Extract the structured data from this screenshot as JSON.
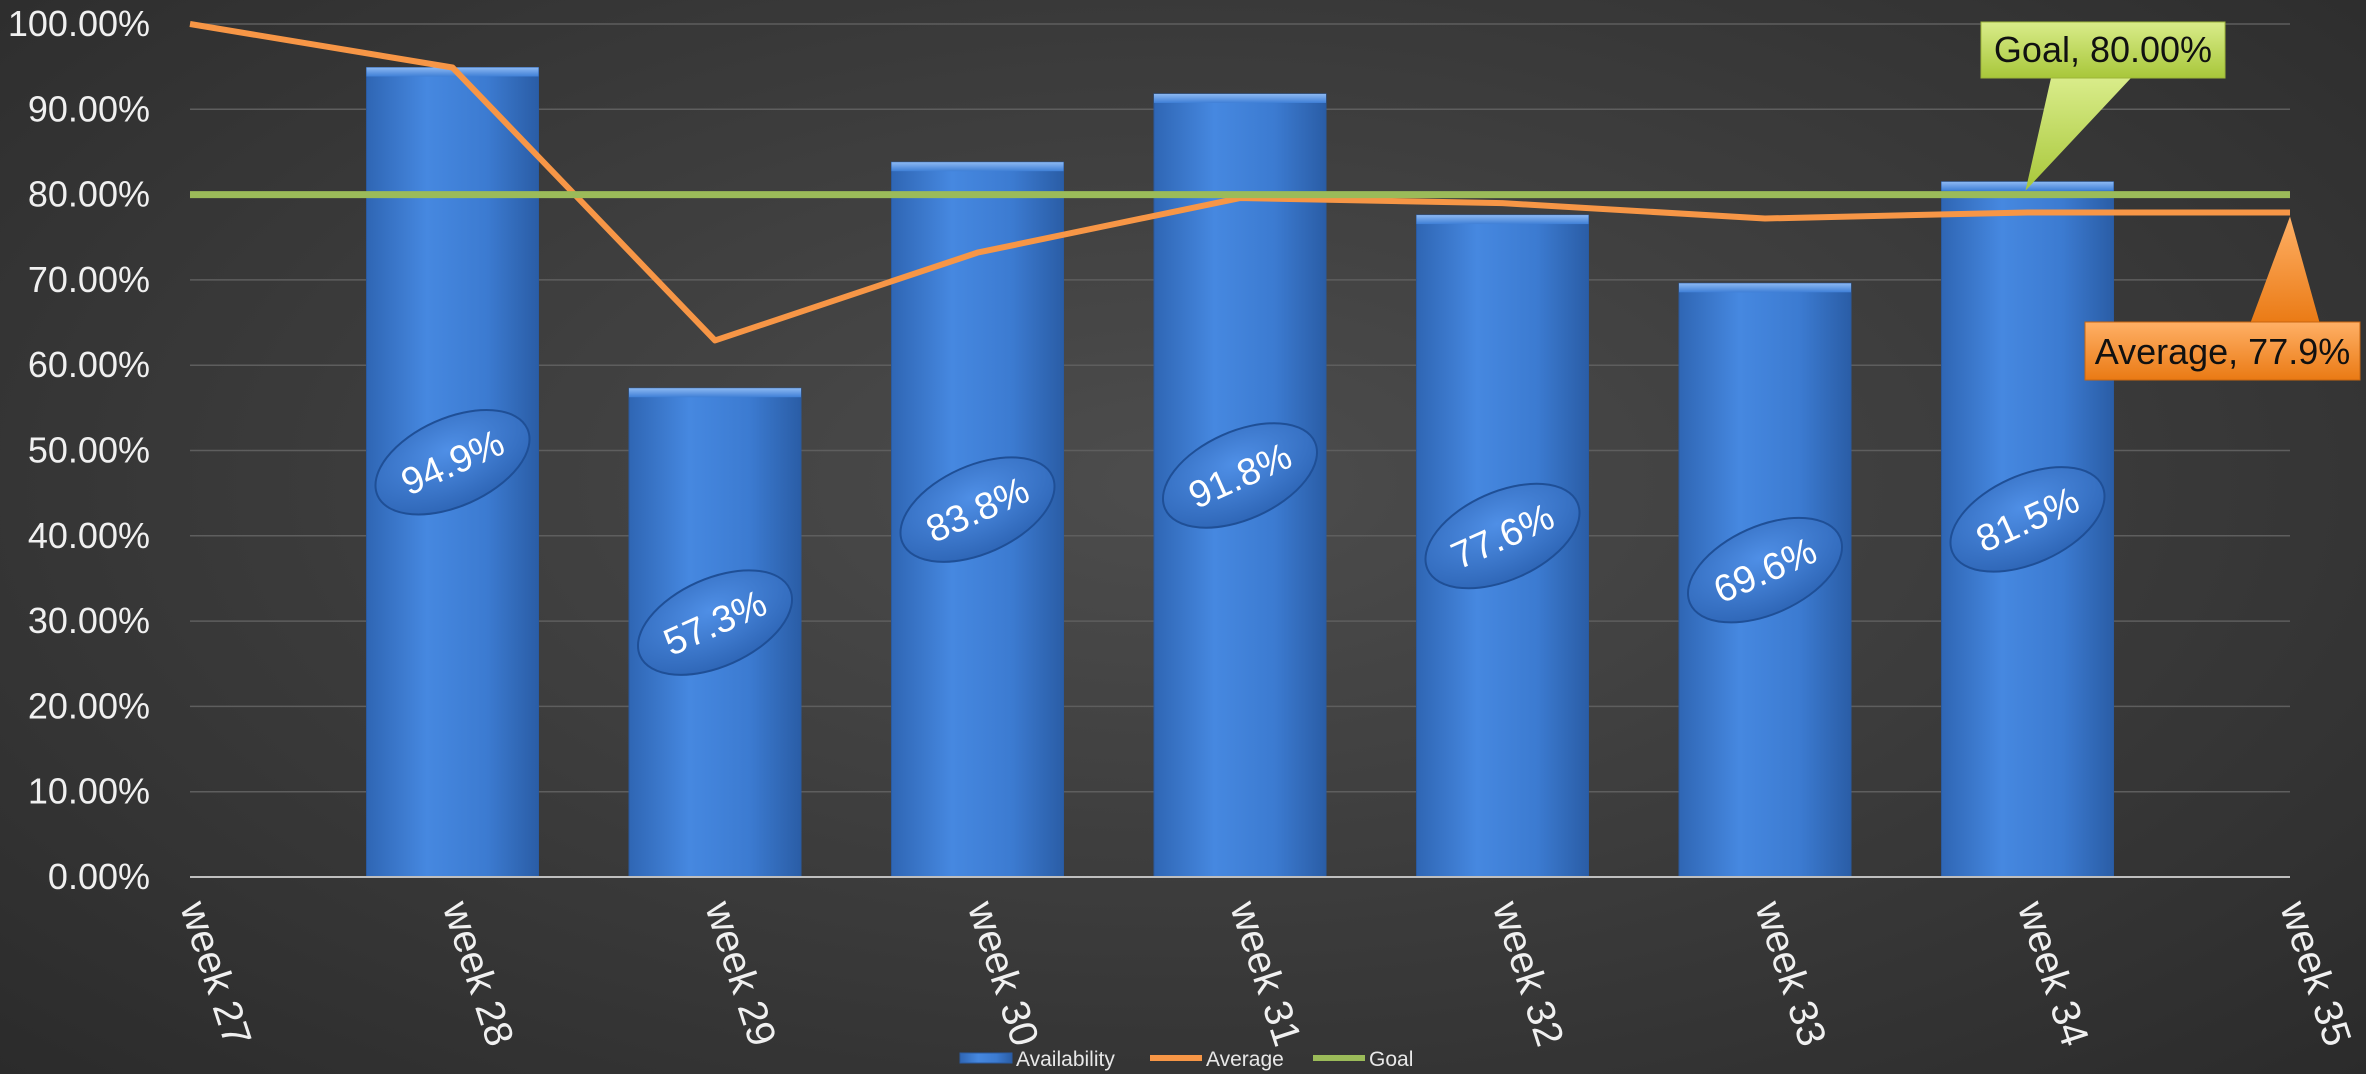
{
  "chart_data": {
    "type": "bar",
    "categories": [
      "week 27",
      "week 28",
      "week 29",
      "week 30",
      "week 31",
      "week 32",
      "week 33",
      "week 34",
      "week 35"
    ],
    "y_ticks": [
      "0.00%",
      "10.00%",
      "20.00%",
      "30.00%",
      "40.00%",
      "50.00%",
      "60.00%",
      "70.00%",
      "80.00%",
      "90.00%",
      "100.00%"
    ],
    "ylim": [
      0,
      100
    ],
    "grid": true,
    "legend_position": "bottom",
    "series": [
      {
        "name": "Availability",
        "kind": "bar",
        "color": "#3f7fd6",
        "values": [
          null,
          94.9,
          57.3,
          83.8,
          91.8,
          77.6,
          69.6,
          81.5,
          null
        ],
        "labels": [
          "",
          "94.9%",
          "57.3%",
          "83.8%",
          "91.8%",
          "77.6%",
          "69.6%",
          "81.5%",
          ""
        ]
      },
      {
        "name": "Average",
        "kind": "line",
        "color": "#f79646",
        "values": [
          100.0,
          94.9,
          62.9,
          73.2,
          79.6,
          79.0,
          77.2,
          77.9,
          77.9
        ]
      },
      {
        "name": "Goal",
        "kind": "line",
        "color": "#9bbb59",
        "values": [
          80,
          80,
          80,
          80,
          80,
          80,
          80,
          80,
          80
        ]
      }
    ],
    "callouts": [
      {
        "text": "Goal, 80.00%",
        "series": "Goal",
        "index": 7,
        "color": "#c3da4e"
      },
      {
        "text": "Average, 77.9%",
        "series": "Average",
        "index": 8,
        "color": "#f48a22"
      }
    ]
  }
}
